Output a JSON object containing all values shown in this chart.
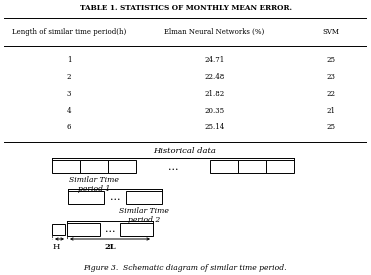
{
  "title": "TABLE 1. STATISTICS OF MONTHLY MEAN ERROR.",
  "col_headers": [
    "Length of similar time period(h)",
    "Elman Neural Networks (%)",
    "SVM"
  ],
  "rows": [
    [
      1,
      "24.71",
      "25"
    ],
    [
      2,
      "22.48",
      "23"
    ],
    [
      3,
      "21.82",
      "22"
    ],
    [
      4,
      "20.35",
      "21"
    ],
    [
      6,
      "25.14",
      "25"
    ]
  ],
  "figure_caption": "Figure 3.  Schematic diagram of similar time period.",
  "historical_data_label": "Historical data",
  "similar_time_period_1": "Similar Time\nperiod 1",
  "similar_time_period_2": "Similar Time\nperiod 2",
  "h_label": "H",
  "twol_label": "2L",
  "bg_color": "#ffffff",
  "line_color": "#000000",
  "text_color": "#000000"
}
